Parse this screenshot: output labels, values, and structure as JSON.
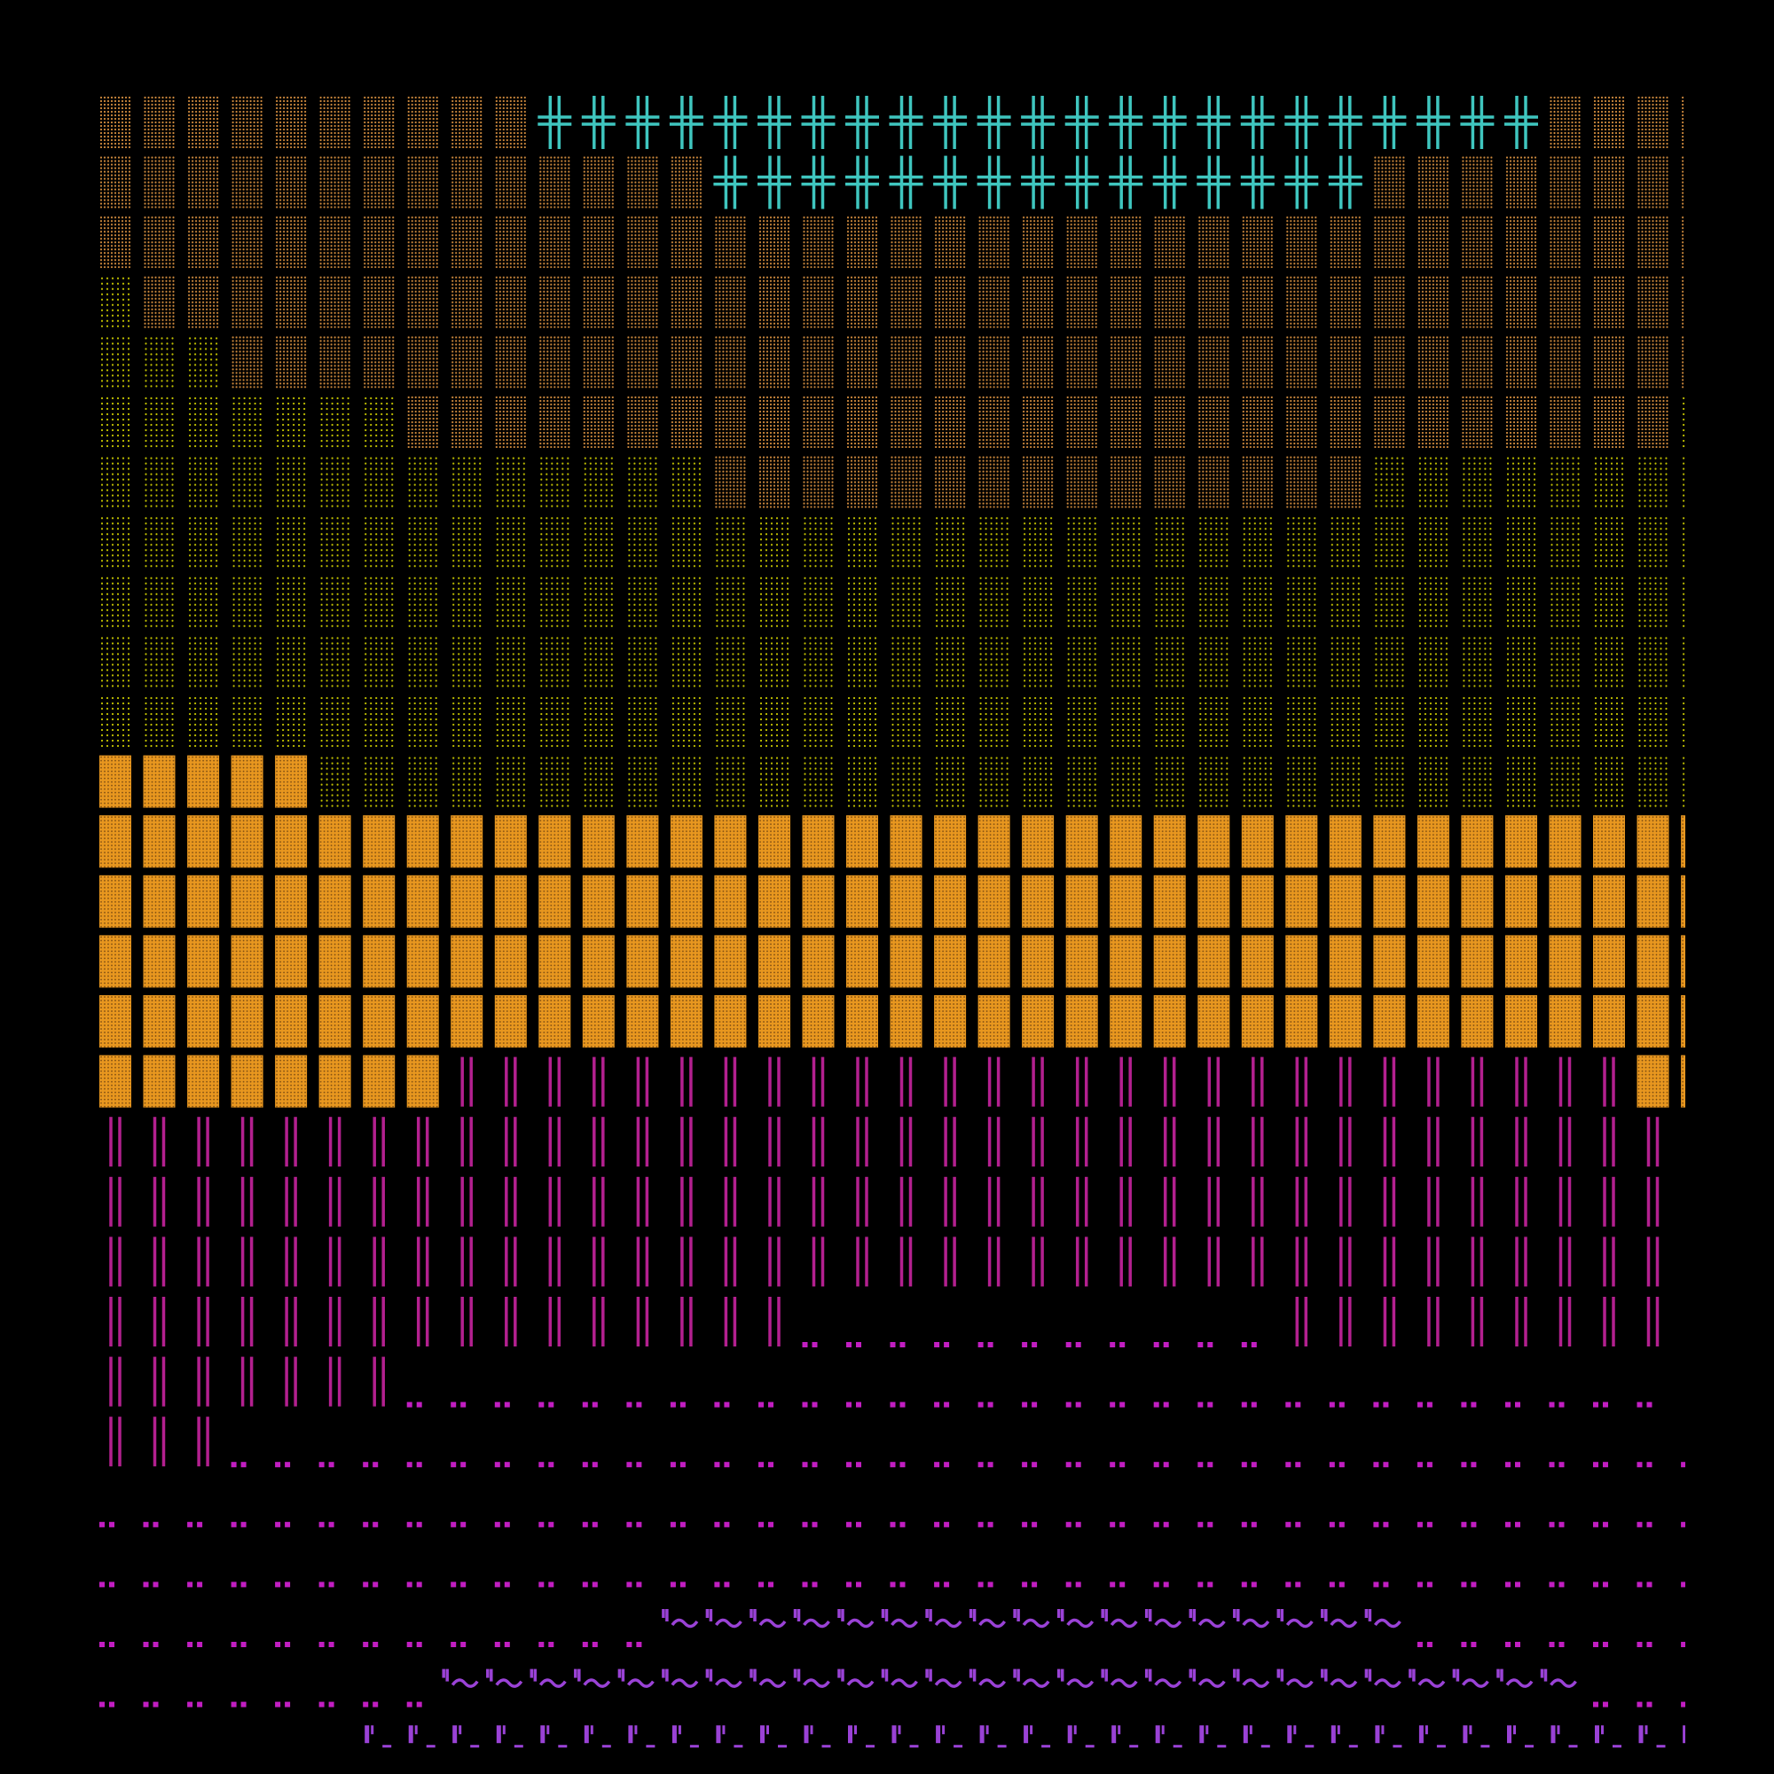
{
  "grid": {
    "rows": [
      [
        [
          "tan",
          10
        ],
        [
          "cross",
          23
        ],
        [
          "tan",
          4
        ]
      ],
      [
        [
          "tan",
          14
        ],
        [
          "cross",
          15
        ],
        [
          "tan",
          8
        ]
      ],
      [
        [
          "tan",
          37
        ]
      ],
      [
        [
          "yellow",
          1
        ],
        [
          "tan",
          36
        ]
      ],
      [
        [
          "yellow",
          3
        ],
        [
          "tan",
          34
        ]
      ],
      [
        [
          "yellow",
          7
        ],
        [
          "tan",
          29
        ],
        [
          "yellow",
          1
        ]
      ],
      [
        [
          "yellow",
          14
        ],
        [
          "tan",
          15
        ],
        [
          "yellow",
          8
        ]
      ],
      [
        [
          "yellow",
          37
        ]
      ],
      [
        [
          "yellow",
          37
        ]
      ],
      [
        [
          "yellow",
          37
        ]
      ],
      [
        [
          "yellow",
          37
        ]
      ],
      [
        [
          "orange",
          5
        ],
        [
          "yellow",
          32
        ]
      ],
      [
        [
          "orange",
          37
        ]
      ],
      [
        [
          "orange",
          37
        ]
      ],
      [
        [
          "orange",
          37
        ]
      ],
      [
        [
          "orange",
          37
        ]
      ],
      [
        [
          "orange",
          8
        ],
        [
          "bars",
          27
        ],
        [
          "orange",
          2
        ]
      ],
      [
        [
          "bars",
          36
        ],
        [
          "empty",
          1
        ]
      ],
      [
        [
          "bars",
          36
        ],
        [
          "empty",
          1
        ]
      ],
      [
        [
          "bars",
          36
        ],
        [
          "empty",
          1
        ]
      ],
      [
        [
          "bars",
          16
        ],
        [
          "dots",
          11
        ],
        [
          "bars",
          9
        ],
        [
          "empty",
          1
        ]
      ],
      [
        [
          "bars",
          7
        ],
        [
          "dots",
          29
        ],
        [
          "empty",
          1
        ]
      ],
      [
        [
          "bars",
          3
        ],
        [
          "dots",
          34
        ]
      ],
      [
        [
          "dots",
          37
        ]
      ],
      [
        [
          "dots",
          37
        ]
      ],
      [
        [
          "dots",
          13
        ],
        [
          "wave",
          17
        ],
        [
          "dots",
          7
        ]
      ],
      [
        [
          "dots",
          8
        ],
        [
          "wave",
          26
        ],
        [
          "dots",
          3
        ]
      ],
      [
        [
          "empty",
          6
        ],
        [
          "under",
          31
        ]
      ]
    ]
  }
}
